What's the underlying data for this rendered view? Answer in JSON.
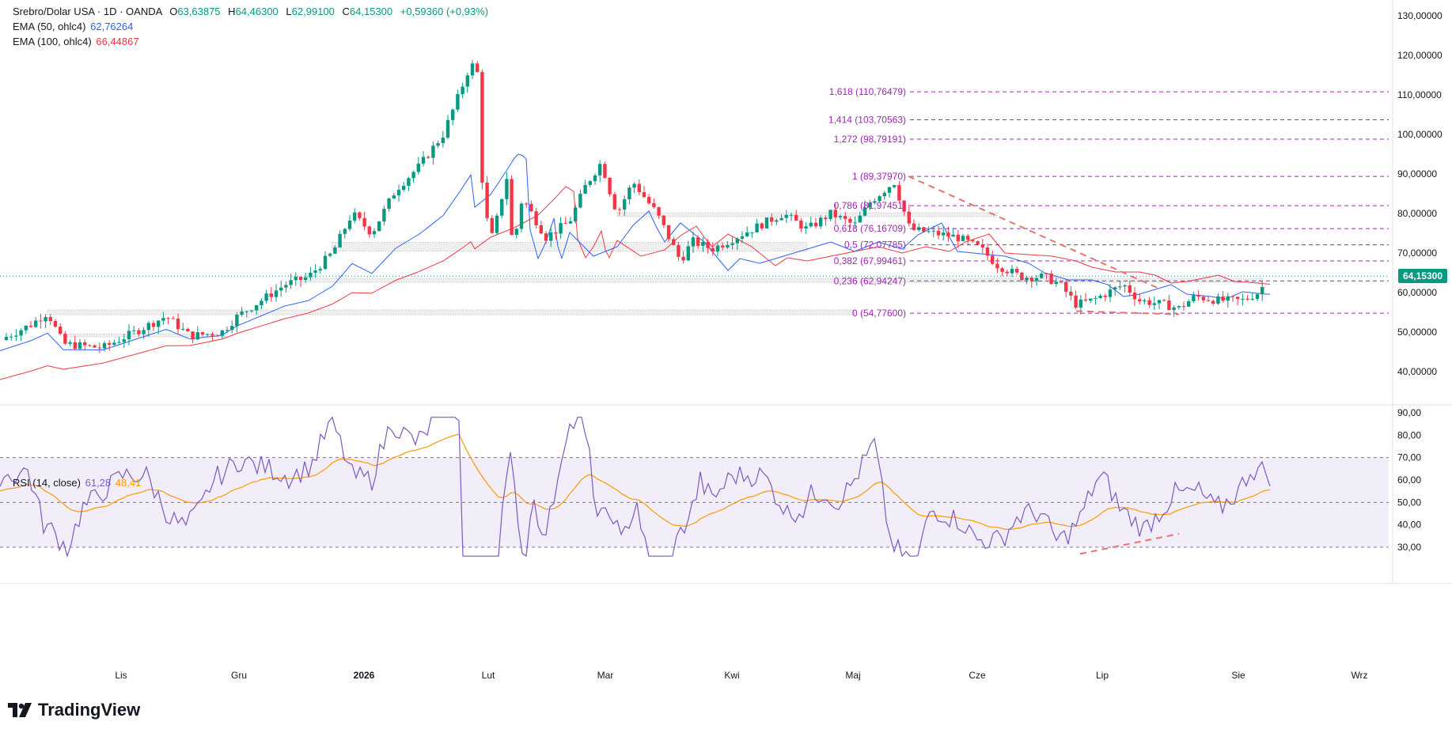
{
  "header": {
    "symbol": "Srebro/Dolar USA · 1D · OANDA",
    "open_label": "O",
    "open": "63,63875",
    "high_label": "H",
    "high": "64,46300",
    "low_label": "L",
    "low": "62,99100",
    "close_label": "C",
    "close": "64,15300",
    "change": "+0,59360 (+0,93%)"
  },
  "indicators": {
    "ema50": {
      "label": "EMA (50, ohlc4)",
      "value": "62,76264",
      "color": "#2962ff"
    },
    "ema100": {
      "label": "EMA (100, ohlc4)",
      "value": "66,44867",
      "color": "#f23645"
    },
    "rsi": {
      "label": "RSI (14, close)",
      "value": "61,28",
      "ma_value": "48,41",
      "color": "#7e57c2",
      "ma_color": "#ff9800"
    }
  },
  "last_price_tag": "64,15300",
  "branding": "TradingView",
  "chart_data": [
    {
      "type": "candlestick",
      "title": "Srebro/Dolar USA · 1D · OANDA",
      "x_ticks": [
        "Lis",
        "Gru",
        "2026",
        "Lut",
        "Mar",
        "Kwi",
        "Maj",
        "Cze",
        "Lip",
        "Sie",
        "Wrz"
      ],
      "y_ticks": [
        "130,00000",
        "120,00000",
        "110,00000",
        "100,00000",
        "90,00000",
        "80,00000",
        "70,00000",
        "60,00000",
        "50,00000",
        "40,00000"
      ],
      "ylim": [
        32,
        131
      ],
      "colors": {
        "up": "#089981",
        "down": "#f23645"
      },
      "fibonacci": [
        {
          "ratio": "1,618",
          "value": 110.76479,
          "label": "1,618 (110,76479)"
        },
        {
          "ratio": "1,414",
          "value": 103.70563,
          "label": "1,414 (103,70563)"
        },
        {
          "ratio": "1,272",
          "value": 98.79191,
          "label": "1,272 (98,79191)"
        },
        {
          "ratio": "1",
          "value": 89.3797,
          "label": "1 (89,37970)"
        },
        {
          "ratio": "0,786",
          "value": 81.97451,
          "label": "0,786 (81,97451)"
        },
        {
          "ratio": "0,618",
          "value": 76.16709,
          "label": "0,618 (76,16709)"
        },
        {
          "ratio": "0,5",
          "value": 72.07785,
          "label": "0,5 (72,07785)"
        },
        {
          "ratio": "0,382",
          "value": 67.99461,
          "label": "0,382 (67,99461)"
        },
        {
          "ratio": "0,236",
          "value": 62.94247,
          "label": "0,236 (62,94247)"
        },
        {
          "ratio": "0",
          "value": 54.776,
          "label": "0 (54,77600)"
        }
      ],
      "support_zones": [
        {
          "from": 54.4,
          "to": 55.6
        },
        {
          "from": 62.6,
          "to": 63.6
        },
        {
          "from": 70.5,
          "to": 72.7
        },
        {
          "from": 79.2,
          "to": 80.2
        },
        {
          "from": 48.8,
          "to": 49.5
        }
      ],
      "trendline": {
        "from": {
          "x": "Maj",
          "y": 89.4
        },
        "to": {
          "x": "Lip",
          "y": 61.0
        }
      },
      "ema50_value": 62.76264,
      "ema100_value": 66.44867,
      "last_close": 64.153
    },
    {
      "type": "line",
      "title": "RSI (14, close)",
      "y_ticks": [
        "90,00",
        "80,00",
        "70,00",
        "60,00",
        "50,00",
        "40,00",
        "30,00"
      ],
      "ylim": [
        25,
        92
      ],
      "levels": [
        70,
        50,
        30
      ],
      "series": [
        {
          "name": "RSI (14, close)",
          "last": 61.28
        },
        {
          "name": "RSI MA",
          "last": 48.41
        }
      ]
    }
  ]
}
